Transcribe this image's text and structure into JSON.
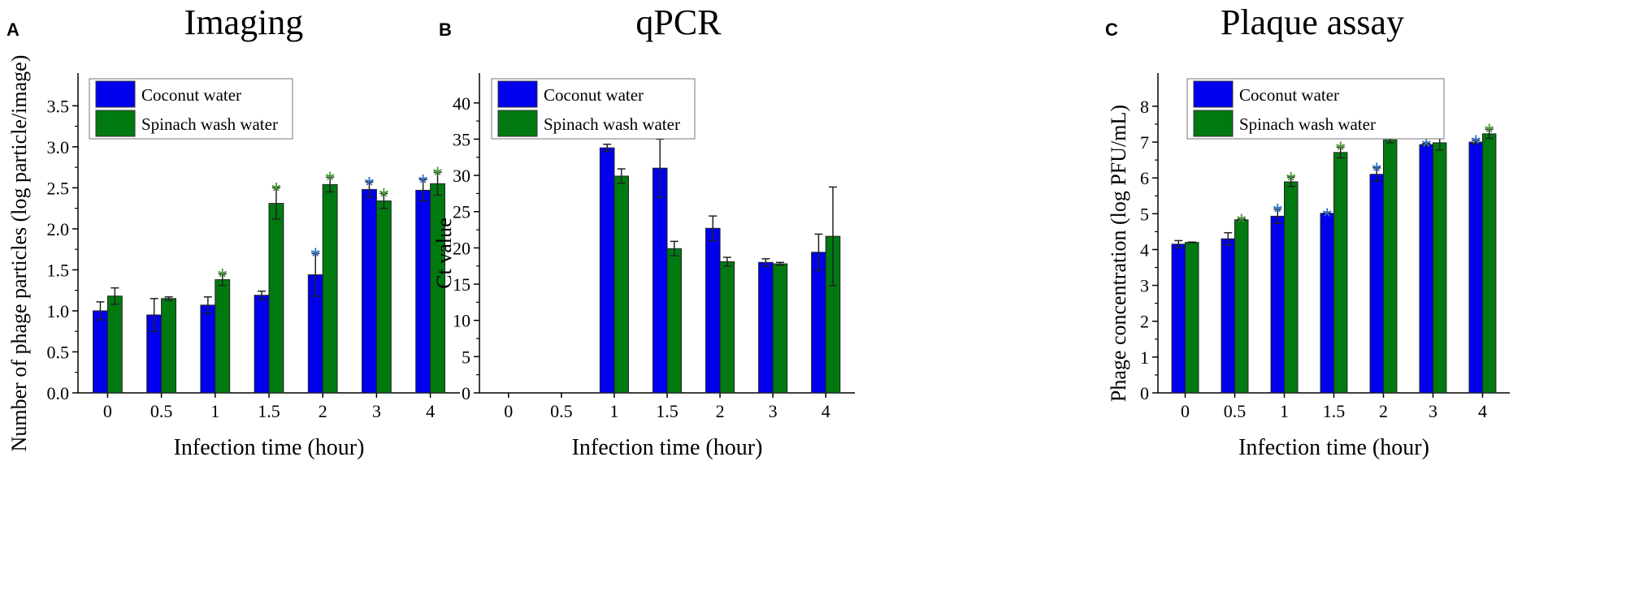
{
  "chart_data": [
    {
      "type": "bar",
      "panel_label": "A",
      "title": "Imaging",
      "xlabel": "Infection time (hour)",
      "ylabel": "Number of phage particles (log particle/image)",
      "categories": [
        "0",
        "0.5",
        "1",
        "1.5",
        "2",
        "3",
        "4"
      ],
      "ylim": [
        0,
        3.8
      ],
      "yticks": [
        "0.0",
        "0.5",
        "1.0",
        "1.5",
        "2.0",
        "2.5",
        "3.0",
        "3.5"
      ],
      "ytick_values": [
        0,
        0.5,
        1,
        1.5,
        2,
        2.5,
        3,
        3.5
      ],
      "legend": "top-left",
      "series": [
        {
          "name": "Coconut water",
          "color": "#0000ee",
          "star_color": "#2f6fc8",
          "values": [
            1.0,
            0.95,
            1.07,
            1.19,
            1.44,
            2.48,
            2.47
          ],
          "errors": [
            0.11,
            0.2,
            0.1,
            0.05,
            0.26,
            0.09,
            0.13
          ],
          "significant": [
            false,
            false,
            false,
            false,
            true,
            true,
            true
          ]
        },
        {
          "name": "Spinach wash water",
          "color": "#007a10",
          "star_color": "#4a9a3a",
          "values": [
            1.18,
            1.15,
            1.38,
            2.31,
            2.54,
            2.34,
            2.55
          ],
          "errors": [
            0.1,
            0.02,
            0.07,
            0.19,
            0.09,
            0.09,
            0.14
          ],
          "significant": [
            false,
            false,
            true,
            true,
            true,
            true,
            true
          ]
        }
      ]
    },
    {
      "type": "bar",
      "panel_label": "B",
      "title": "qPCR",
      "xlabel": "Infection time (hour)",
      "ylabel": "Ct value",
      "categories": [
        "0",
        "0.5",
        "1",
        "1.5",
        "2",
        "3",
        "4"
      ],
      "ylim": [
        0,
        43
      ],
      "yticks": [
        "0",
        "5",
        "10",
        "15",
        "20",
        "25",
        "30",
        "35",
        "40"
      ],
      "ytick_values": [
        0,
        5,
        10,
        15,
        20,
        25,
        30,
        35,
        40
      ],
      "legend": "top-left",
      "series": [
        {
          "name": "Coconut water",
          "color": "#0000ee",
          "values": [
            null,
            null,
            33.8,
            31.0,
            22.7,
            18.0,
            19.4
          ],
          "errors": [
            null,
            null,
            0.5,
            4.0,
            1.7,
            0.5,
            2.5
          ],
          "significant": [
            false,
            false,
            false,
            false,
            false,
            false,
            false
          ]
        },
        {
          "name": "Spinach wash water",
          "color": "#007a10",
          "values": [
            null,
            null,
            29.9,
            19.9,
            18.1,
            17.8,
            21.6
          ],
          "errors": [
            null,
            null,
            1.0,
            1.0,
            0.6,
            0.2,
            6.8
          ],
          "significant": [
            false,
            false,
            false,
            false,
            false,
            false,
            false
          ]
        }
      ]
    },
    {
      "type": "bar",
      "panel_label": "C",
      "title": "Plaque assay",
      "xlabel": "Infection time (hour)",
      "ylabel": "Phage concentration (log PFU/mL)",
      "categories": [
        "0",
        "0.5",
        "1",
        "1.5",
        "2",
        "3",
        "4"
      ],
      "ylim": [
        0,
        8.7
      ],
      "yticks": [
        "0",
        "1",
        "2",
        "3",
        "4",
        "5",
        "6",
        "7",
        "8"
      ],
      "ytick_values": [
        0,
        1,
        2,
        3,
        4,
        5,
        6,
        7,
        8
      ],
      "legend": "top-left",
      "series": [
        {
          "name": "Coconut water",
          "color": "#0000ee",
          "star_color": "#2f6fc8",
          "values": [
            4.15,
            4.3,
            4.93,
            5.01,
            6.1,
            6.93,
            7.0
          ],
          "errors": [
            0.1,
            0.17,
            0.2,
            0.0,
            0.18,
            0.03,
            0.05
          ],
          "significant": [
            false,
            false,
            true,
            true,
            true,
            true,
            true
          ]
        },
        {
          "name": "Spinach wash water",
          "color": "#007a10",
          "star_color": "#4a9a3a",
          "values": [
            4.2,
            4.83,
            5.89,
            6.71,
            7.06,
            6.98,
            7.23
          ],
          "errors": [
            0.01,
            0.02,
            0.13,
            0.15,
            0.08,
            0.2,
            0.13
          ],
          "significant": [
            false,
            true,
            true,
            true,
            true,
            true,
            true
          ]
        }
      ]
    }
  ]
}
